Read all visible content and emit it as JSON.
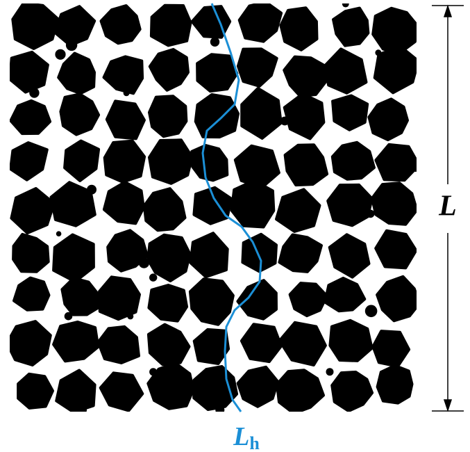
{
  "labels": {
    "length": "L",
    "path_length": {
      "main": "L",
      "sub": "h"
    }
  }
}
